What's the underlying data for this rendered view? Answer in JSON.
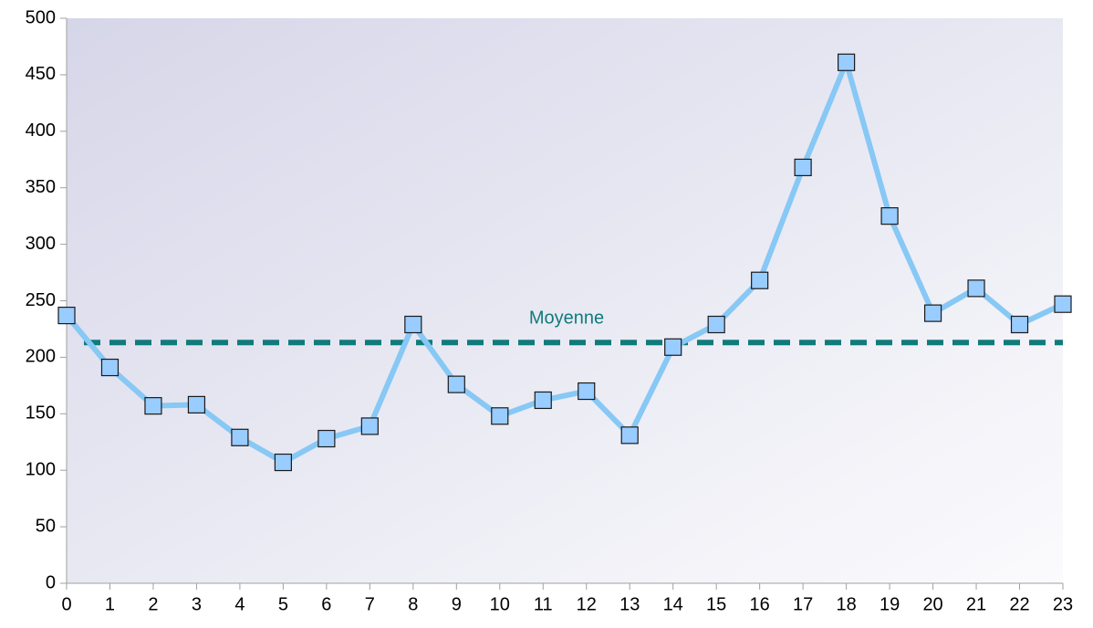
{
  "chart_data": {
    "type": "line",
    "x": [
      0,
      1,
      2,
      3,
      4,
      5,
      6,
      7,
      8,
      9,
      10,
      11,
      12,
      13,
      14,
      15,
      16,
      17,
      18,
      19,
      20,
      21,
      22,
      23
    ],
    "series": [
      {
        "color": "#87c8f5",
        "values": [
          237,
          191,
          157,
          158,
          129,
          107,
          128,
          139,
          229,
          176,
          148,
          162,
          170,
          131,
          209,
          229,
          268,
          368,
          461,
          325,
          239,
          261,
          229,
          247
        ]
      }
    ],
    "xlim": [
      0,
      23
    ],
    "xticks": [
      0,
      1,
      2,
      3,
      4,
      5,
      6,
      7,
      8,
      9,
      10,
      11,
      12,
      13,
      14,
      15,
      16,
      17,
      18,
      19,
      20,
      21,
      22,
      23
    ],
    "ylim": [
      0,
      500
    ],
    "yticks": [
      0,
      50,
      100,
      150,
      200,
      250,
      300,
      350,
      400,
      450,
      500
    ],
    "reference_line": {
      "label": "Moyenne",
      "value": 213,
      "color": "#0f7b7b"
    }
  }
}
